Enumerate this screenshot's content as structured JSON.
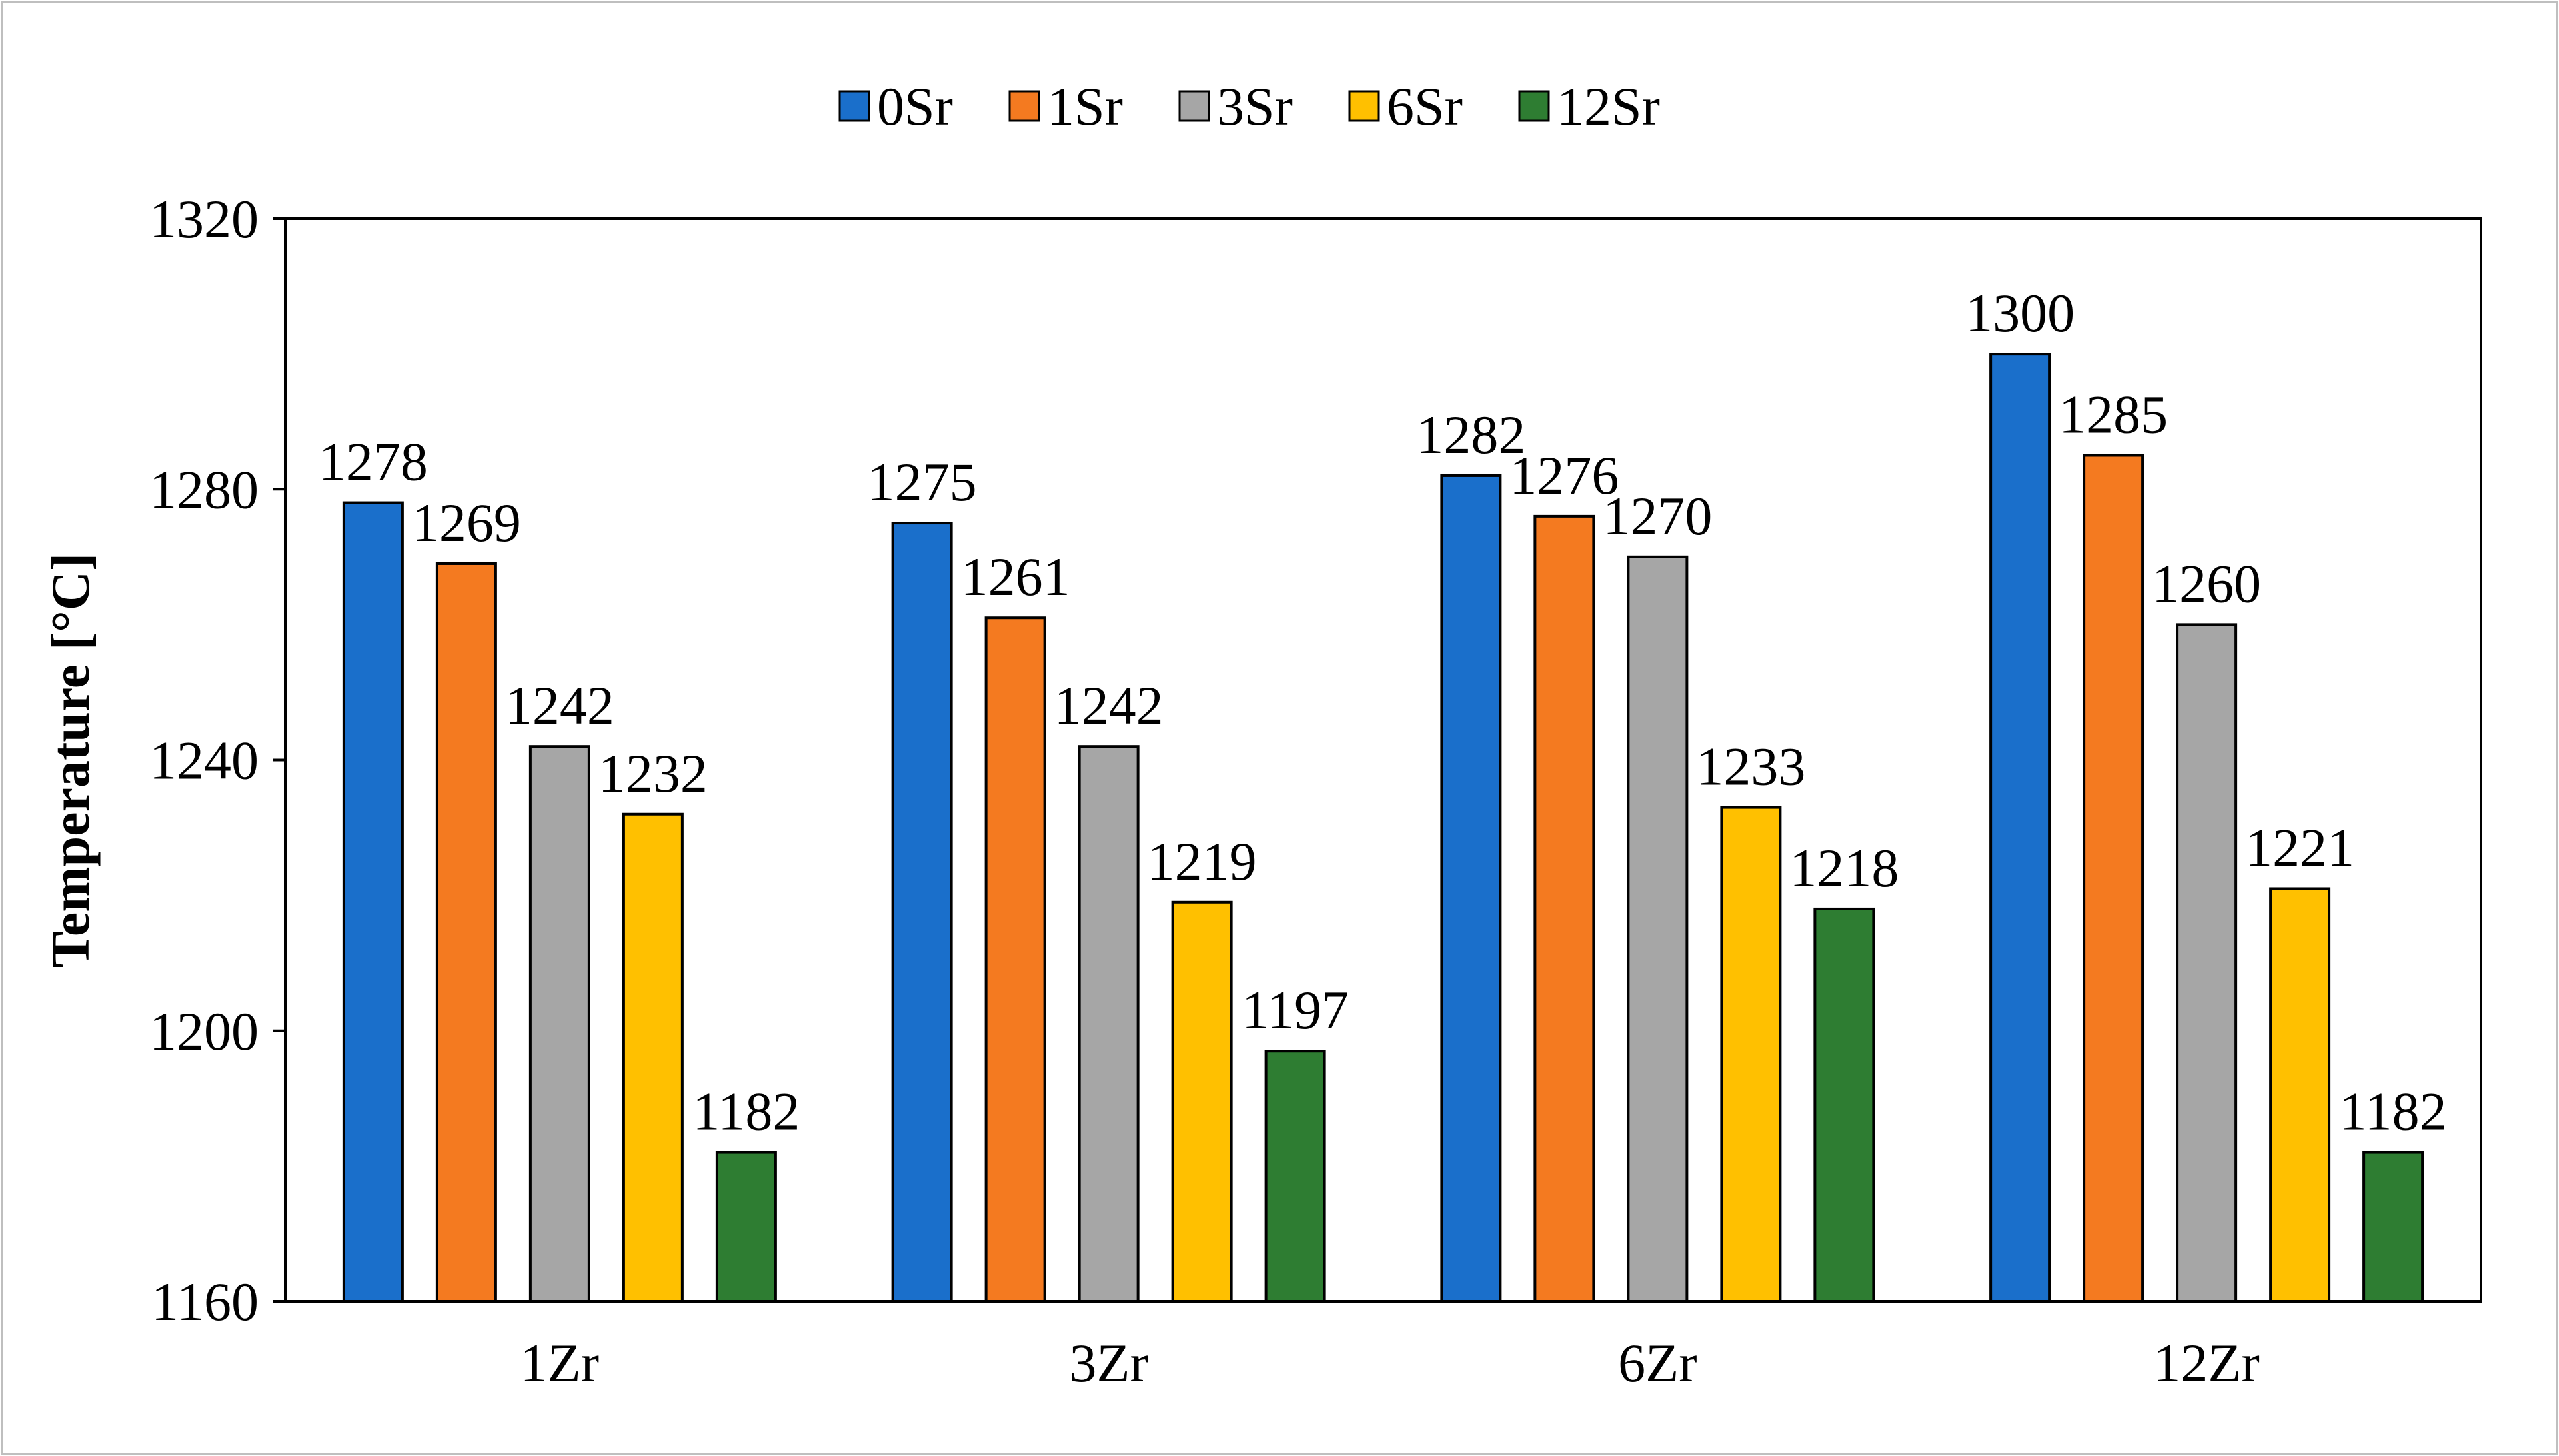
{
  "chart_data": {
    "type": "bar",
    "title": "",
    "xlabel": "",
    "ylabel": "Temperature [°C]",
    "categories": [
      "1Zr",
      "3Zr",
      "6Zr",
      "12Zr"
    ],
    "series": [
      {
        "name": "0Sr",
        "color": "#1a6fcb",
        "values": [
          1278,
          1275,
          1282,
          1300
        ]
      },
      {
        "name": "1Sr",
        "color": "#f47a20",
        "values": [
          1269,
          1261,
          1276,
          1285
        ]
      },
      {
        "name": "3Sr",
        "color": "#a6a6a6",
        "values": [
          1242,
          1242,
          1270,
          1260
        ]
      },
      {
        "name": "6Sr",
        "color": "#ffc000",
        "values": [
          1232,
          1219,
          1233,
          1221
        ]
      },
      {
        "name": "12Sr",
        "color": "#2e7d32",
        "values": [
          1182,
          1197,
          1218,
          1182
        ]
      }
    ],
    "ylim": [
      1160,
      1320
    ],
    "yticks": [
      1160,
      1200,
      1240,
      1280,
      1320
    ],
    "grid": false,
    "legend_position": "top-center",
    "data_labels": true
  }
}
